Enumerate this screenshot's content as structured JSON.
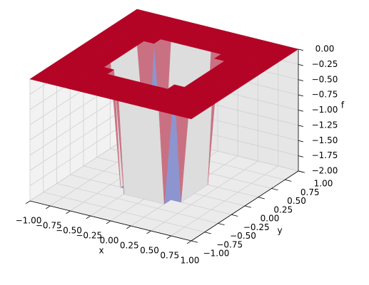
{
  "chart_data": {
    "type": "surface3d",
    "cmap": "coolwarm",
    "x_label": "x",
    "y_label": "y",
    "z_label": "f",
    "x": [
      -1,
      -0.875,
      -0.75,
      -0.625,
      -0.5,
      -0.375,
      -0.25,
      -0.125,
      0,
      0.125,
      0.25,
      0.375,
      0.5,
      0.625,
      0.75,
      0.875,
      1
    ],
    "y": [
      -1,
      -0.875,
      -0.75,
      -0.625,
      -0.5,
      -0.375,
      -0.25,
      -0.125,
      0,
      0.125,
      0.25,
      0.375,
      0.5,
      0.625,
      0.75,
      0.875,
      1
    ],
    "z": [
      [
        0,
        0,
        0,
        0,
        0,
        0,
        0,
        0,
        0,
        0,
        0,
        0,
        0,
        0,
        0,
        0,
        0
      ],
      [
        0,
        0,
        0,
        0,
        0,
        0,
        0,
        0,
        0,
        0,
        0,
        0,
        0,
        0,
        0,
        0,
        0
      ],
      [
        0,
        0,
        0,
        0,
        0,
        0,
        0,
        0,
        0,
        0,
        0,
        0,
        0,
        0,
        0,
        0,
        0
      ],
      [
        0,
        0,
        0,
        0,
        0,
        0,
        0,
        0,
        0,
        0,
        0,
        0,
        0,
        0,
        0,
        0,
        0
      ],
      [
        0,
        0,
        0,
        0,
        0,
        0,
        0,
        0,
        0,
        0,
        0,
        0,
        0,
        0,
        0,
        0,
        0
      ],
      [
        0,
        0,
        0,
        0,
        0,
        0,
        -2,
        -2,
        -2,
        -2,
        -2,
        0,
        0,
        0,
        0,
        0,
        0
      ],
      [
        0,
        0,
        0,
        0,
        0,
        -2,
        -2,
        -2,
        -2,
        -2,
        -2,
        -2,
        0,
        0,
        0,
        0,
        0
      ],
      [
        0,
        0,
        0,
        0,
        0,
        -2,
        -2,
        -2,
        -2,
        -2,
        -2,
        -2,
        0,
        0,
        0,
        0,
        0
      ],
      [
        0,
        0,
        0,
        0,
        0,
        -2,
        -2,
        -2,
        -2,
        -2,
        -2,
        -2,
        0,
        0,
        0,
        0,
        0
      ],
      [
        0,
        0,
        0,
        0,
        0,
        -2,
        -2,
        -2,
        -2,
        -2,
        -2,
        -2,
        0,
        0,
        0,
        0,
        0
      ],
      [
        0,
        0,
        0,
        0,
        0,
        -2,
        -2,
        -2,
        -2,
        -2,
        -2,
        -2,
        0,
        0,
        0,
        0,
        0
      ],
      [
        0,
        0,
        0,
        0,
        0,
        0,
        -2,
        -2,
        -2,
        -2,
        -2,
        0,
        0,
        0,
        0,
        0,
        0
      ],
      [
        0,
        0,
        0,
        0,
        0,
        0,
        0,
        0,
        0,
        0,
        0,
        0,
        0,
        0,
        0,
        0,
        0
      ],
      [
        0,
        0,
        0,
        0,
        0,
        0,
        0,
        0,
        0,
        0,
        0,
        0,
        0,
        0,
        0,
        0,
        0
      ],
      [
        0,
        0,
        0,
        0,
        0,
        0,
        0,
        0,
        0,
        0,
        0,
        0,
        0,
        0,
        0,
        0,
        0
      ],
      [
        0,
        0,
        0,
        0,
        0,
        0,
        0,
        0,
        0,
        0,
        0,
        0,
        0,
        0,
        0,
        0,
        0
      ],
      [
        0,
        0,
        0,
        0,
        0,
        0,
        0,
        0,
        0,
        0,
        0,
        0,
        0,
        0,
        0,
        0,
        0
      ]
    ],
    "xlim": [
      -1,
      1
    ],
    "ylim": [
      -1,
      1
    ],
    "zlim": [
      -2,
      0
    ],
    "xticks": [
      {
        "value": -1,
        "label": "−1.00"
      },
      {
        "value": -0.75,
        "label": "−0.75"
      },
      {
        "value": -0.5,
        "label": "−0.50"
      },
      {
        "value": -0.25,
        "label": "−0.25"
      },
      {
        "value": 0,
        "label": "0.00"
      },
      {
        "value": 0.25,
        "label": "0.25"
      },
      {
        "value": 0.5,
        "label": "0.50"
      },
      {
        "value": 0.75,
        "label": "0.75"
      },
      {
        "value": 1,
        "label": "1.00"
      }
    ],
    "yticks": [
      {
        "value": -1,
        "label": "−1.00"
      },
      {
        "value": -0.75,
        "label": "−0.75"
      },
      {
        "value": -0.5,
        "label": "−0.50"
      },
      {
        "value": -0.25,
        "label": "−0.25"
      },
      {
        "value": 0,
        "label": "0.00"
      },
      {
        "value": 0.25,
        "label": "0.25"
      },
      {
        "value": 0.5,
        "label": "0.50"
      },
      {
        "value": 0.75,
        "label": "0.75"
      },
      {
        "value": 1,
        "label": "1.00"
      }
    ],
    "zticks": [
      {
        "value": 0,
        "label": "0.00"
      },
      {
        "value": -0.25,
        "label": "−0.25"
      },
      {
        "value": -0.5,
        "label": "−0.50"
      },
      {
        "value": -0.75,
        "label": "−0.75"
      },
      {
        "value": -1,
        "label": "−1.00"
      },
      {
        "value": -1.25,
        "label": "−1.25"
      },
      {
        "value": -1.5,
        "label": "−1.50"
      },
      {
        "value": -1.75,
        "label": "−1.75"
      },
      {
        "value": -2,
        "label": "−2.00"
      }
    ],
    "grid": true
  }
}
